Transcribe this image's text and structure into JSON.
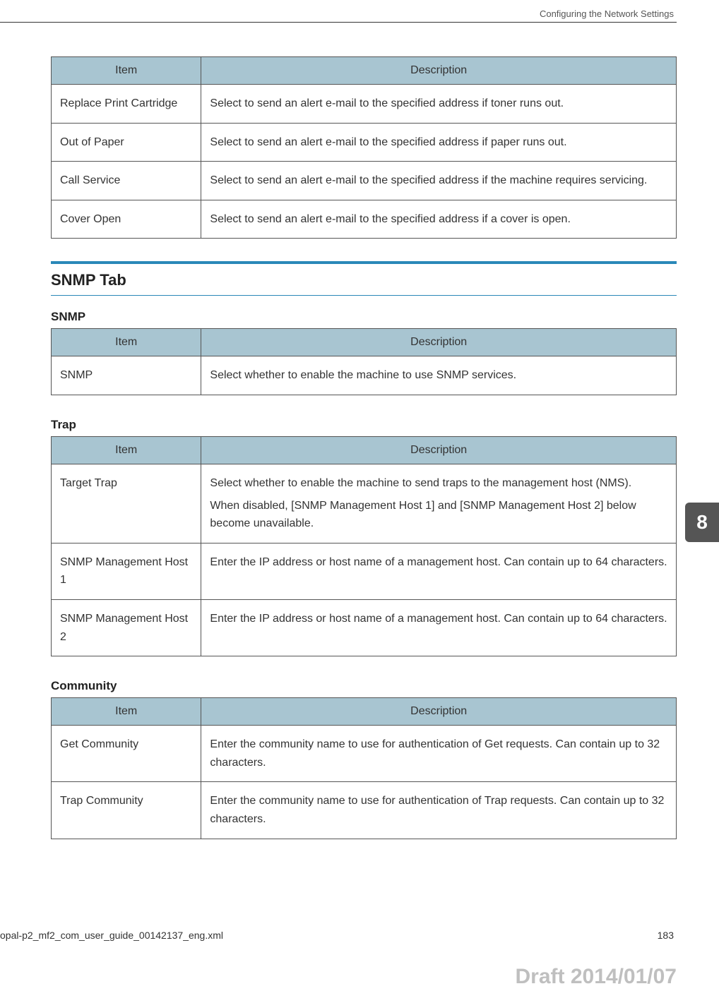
{
  "header": {
    "running_title": "Configuring the Network Settings"
  },
  "colors": {
    "accent": "#2a88b8",
    "table_header_bg": "#a8c5d1",
    "table_border": "#555555",
    "side_tab_bg": "#555555",
    "side_tab_fg": "#ffffff",
    "watermark": "#bfbfbf",
    "body_text": "#333333",
    "background": "#ffffff"
  },
  "typography": {
    "body_fontsize": 16,
    "h2_fontsize": 22,
    "h3_fontsize": 17,
    "header_fontsize": 13,
    "footer_fontsize": 14,
    "watermark_fontsize": 30
  },
  "tables": {
    "col_widths_pct": [
      24,
      76
    ],
    "alerts": {
      "headers": {
        "item": "Item",
        "description": "Description"
      },
      "rows": [
        {
          "item": "Replace Print Cartridge",
          "description": "Select to send an alert e-mail to the specified address if toner runs out."
        },
        {
          "item": "Out of Paper",
          "description": "Select to send an alert e-mail to the specified address if paper runs out."
        },
        {
          "item": "Call Service",
          "description": "Select to send an alert e-mail to the specified address if the machine requires servicing."
        },
        {
          "item": "Cover Open",
          "description": "Select to send an alert e-mail to the specified address if a cover is open."
        }
      ]
    },
    "snmp": {
      "headers": {
        "item": "Item",
        "description": "Description"
      },
      "rows": [
        {
          "item": "SNMP",
          "description": "Select whether to enable the machine to use SNMP services."
        }
      ]
    },
    "trap": {
      "headers": {
        "item": "Item",
        "description": "Description"
      },
      "rows": [
        {
          "item": "Target Trap",
          "desc_line1": "Select whether to enable the machine to send traps to the management host (NMS).",
          "desc_line2": "When disabled, [SNMP Management Host 1] and [SNMP Management Host 2] below become unavailable."
        },
        {
          "item": "SNMP Management Host 1",
          "description": "Enter the IP address or host name of a management host. Can contain up to 64 characters."
        },
        {
          "item": "SNMP Management Host 2",
          "description": "Enter the IP address or host name of a management host. Can contain up to 64 characters."
        }
      ]
    },
    "community": {
      "headers": {
        "item": "Item",
        "description": "Description"
      },
      "rows": [
        {
          "item": "Get Community",
          "description": "Enter the community name to use for authentication of Get requests. Can contain up to 32 characters."
        },
        {
          "item": "Trap Community",
          "description": "Enter the community name to use for authentication of Trap requests. Can contain up to 32 characters."
        }
      ]
    }
  },
  "headings": {
    "h2_snmp_tab": "SNMP Tab",
    "h3_snmp": "SNMP",
    "h3_trap": "Trap",
    "h3_community": "Community"
  },
  "side_tab": {
    "label": "8"
  },
  "footer": {
    "filename": "opal-p2_mf2_com_user_guide_00142137_eng.xml",
    "page_number": "183"
  },
  "watermark": {
    "text": "Draft 2014/01/07"
  }
}
